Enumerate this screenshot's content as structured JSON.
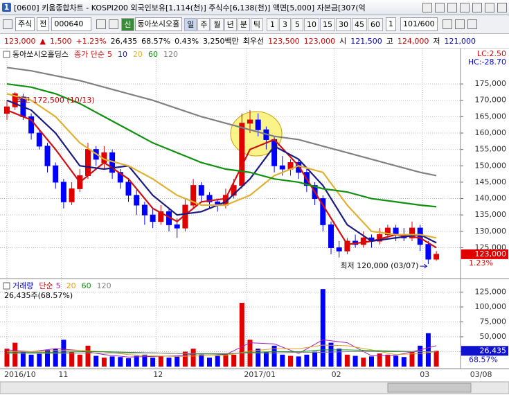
{
  "window": {
    "title": "[0600] 키움종합차트 - KOSPI200 외국인보유[1,114(천)] 주식수[6,138(천)] 액면[5,000] 자본금[307(억",
    "tab": "1"
  },
  "toolbar": {
    "market": "주식",
    "scope": "전",
    "code": "000640",
    "name_icon": "신",
    "name": "동아쏘시오홀",
    "periods": [
      "일",
      "주",
      "월",
      "년",
      "분",
      "틱"
    ],
    "intervals": [
      "1",
      "3",
      "5",
      "10",
      "15",
      "30",
      "45",
      "60"
    ],
    "count_select": "1",
    "page": "101/600"
  },
  "quote": [
    {
      "text": "123,000",
      "color": "#d00000"
    },
    {
      "text": "▲",
      "color": "#d00000"
    },
    {
      "text": "1,500",
      "color": "#d00000"
    },
    {
      "text": "+1.23%",
      "color": "#d00000"
    },
    {
      "text": "26,435",
      "color": "#000000"
    },
    {
      "text": "68.57%",
      "color": "#000000"
    },
    {
      "text": "0.43%",
      "color": "#000000"
    },
    {
      "text": "3,250백만",
      "color": "#000000"
    },
    {
      "text": "최우선",
      "color": "#000000"
    },
    {
      "text": "123,500",
      "color": "#d00000"
    },
    {
      "text": "123,000",
      "color": "#d00000"
    },
    {
      "text": "시",
      "color": "#000000"
    },
    {
      "text": "121,500",
      "color": "#0000d0"
    },
    {
      "text": "고",
      "color": "#000000"
    },
    {
      "text": "124,000",
      "color": "#d00000"
    },
    {
      "text": "저",
      "color": "#000000"
    },
    {
      "text": "121,000",
      "color": "#0000d0"
    }
  ],
  "chart_data": [
    {
      "type": "candlestick",
      "title": "동아쏘시오홀딩스",
      "ma_label": "종가 단순",
      "candles": {
        "up_color": "#e00000",
        "down_color": "#0000ff",
        "open": [
          166000,
          168000,
          171000,
          165000,
          160000,
          156000,
          150000,
          145000,
          139000,
          143000,
          147000,
          155000,
          151000,
          154000,
          148000,
          145000,
          141000,
          138000,
          135000,
          133000,
          136000,
          132000,
          131000,
          138000,
          144000,
          141000,
          139000,
          138000,
          141000,
          144000,
          163000,
          164000,
          161000,
          158000,
          150000,
          149000,
          151000,
          148000,
          144000,
          140000,
          132000,
          125000,
          124000,
          127000,
          126000,
          128000,
          127000,
          129000,
          131000,
          129000,
          128000,
          131000,
          126000,
          121500
        ],
        "high": [
          170000,
          172500,
          172000,
          166000,
          161000,
          157000,
          151000,
          146000,
          145000,
          149000,
          157000,
          156000,
          156000,
          155000,
          149000,
          146000,
          143000,
          139000,
          137000,
          138000,
          137000,
          134000,
          140000,
          146000,
          145000,
          142000,
          140000,
          143000,
          146000,
          166000,
          167000,
          166000,
          162000,
          159000,
          153000,
          152000,
          152000,
          149000,
          145000,
          141000,
          133000,
          127000,
          128000,
          129000,
          130000,
          129000,
          131000,
          132000,
          132000,
          131000,
          133000,
          132000,
          127000,
          124000
        ],
        "low": [
          164000,
          167000,
          164000,
          158000,
          155000,
          148000,
          143000,
          137000,
          138000,
          142000,
          146000,
          150000,
          149000,
          146000,
          143000,
          139000,
          135000,
          132000,
          131000,
          132000,
          130000,
          128000,
          130000,
          137000,
          139000,
          137000,
          136000,
          137000,
          140000,
          143000,
          160000,
          159000,
          155000,
          148000,
          147000,
          147000,
          146000,
          142000,
          138000,
          130000,
          123000,
          122000,
          123000,
          125000,
          125000,
          125000,
          126000,
          128000,
          127000,
          127000,
          127000,
          124000,
          120000,
          121000
        ],
        "close": [
          168000,
          172000,
          165000,
          160000,
          156000,
          150000,
          145000,
          139000,
          143000,
          147000,
          155000,
          152000,
          154000,
          148000,
          145000,
          141000,
          138000,
          135000,
          133000,
          136000,
          132000,
          131000,
          138000,
          144000,
          141000,
          139000,
          138000,
          141000,
          144000,
          163000,
          164000,
          161000,
          158000,
          150000,
          149000,
          151000,
          148000,
          144000,
          140000,
          132000,
          125000,
          124000,
          127000,
          126000,
          128000,
          127000,
          129000,
          131000,
          129000,
          128000,
          131000,
          126000,
          121500,
          123000
        ]
      },
      "ma_x": [
        0,
        3,
        6,
        9,
        12,
        15,
        18,
        21,
        24,
        27,
        30,
        33,
        36,
        39,
        42,
        45,
        48,
        51,
        53
      ],
      "series": [
        {
          "name": "5",
          "color": "#d01010",
          "values": [
            167000,
            164000,
            155000,
            145000,
            151000,
            146000,
            137000,
            133000,
            139000,
            140000,
            155000,
            158000,
            150000,
            138000,
            126000,
            127000,
            129000,
            128000,
            125000
          ]
        },
        {
          "name": "10",
          "color": "#1a1a80",
          "values": [
            170000,
            167000,
            160000,
            150000,
            149000,
            150000,
            141000,
            135000,
            136000,
            139000,
            146000,
            156000,
            152000,
            144000,
            132000,
            127000,
            128000,
            129000,
            126500
          ]
        },
        {
          "name": "20",
          "color": "#e0b030",
          "values": [
            172000,
            170000,
            165000,
            157000,
            152000,
            150000,
            146000,
            141000,
            138000,
            138000,
            141000,
            147000,
            150000,
            148000,
            138000,
            130000,
            129000,
            129000,
            128000
          ]
        },
        {
          "name": "60",
          "color": "#109010",
          "values": [
            175000,
            174000,
            172000,
            169000,
            165000,
            161000,
            157000,
            154000,
            151000,
            149000,
            148000,
            146000,
            145000,
            143000,
            142000,
            140000,
            139000,
            138000,
            137500
          ]
        },
        {
          "name": "120",
          "color": "#808080",
          "values": [
            180000,
            179000,
            177500,
            176000,
            174000,
            172000,
            170000,
            167500,
            165000,
            163000,
            161000,
            159000,
            158000,
            156000,
            154000,
            152000,
            150000,
            148000,
            147000
          ]
        }
      ],
      "ylim": [
        116000,
        182000
      ],
      "yticks": [
        {
          "value": 125000,
          "label": "125,000"
        },
        {
          "value": 130000,
          "label": "130,000"
        },
        {
          "value": 135000,
          "label": "135,000"
        },
        {
          "value": 140000,
          "label": "140,000"
        },
        {
          "value": 145000,
          "label": "145,000"
        },
        {
          "value": 150000,
          "label": "150,000"
        },
        {
          "value": 155000,
          "label": "155,000"
        },
        {
          "value": 160000,
          "label": "160,000"
        },
        {
          "value": 165000,
          "label": "165,000"
        },
        {
          "value": 170000,
          "label": "170,000"
        },
        {
          "value": 175000,
          "label": "175,000"
        }
      ],
      "high_label": "최고 172,500 (10/13)",
      "low_label": "최저 120,000 (03/07)",
      "indicators": [
        {
          "text": "LC:2.50",
          "color": "#e00000"
        },
        {
          "text": "HC:-28.70",
          "color": "#0000ff"
        }
      ],
      "last_price": {
        "value": 123000,
        "label": "123,000"
      },
      "change_label": "1.23%"
    },
    {
      "type": "bar",
      "title": "거래량",
      "ma_label": "단순",
      "subtitle": "26,435주(68.57%)",
      "up_color": "#e00000",
      "down_color": "#0000ff",
      "values": [
        30000,
        40000,
        25000,
        20000,
        22000,
        28000,
        30000,
        45000,
        25000,
        20000,
        35000,
        18000,
        15000,
        17000,
        16000,
        14000,
        18000,
        20000,
        15000,
        17000,
        15000,
        18000,
        25000,
        30000,
        20000,
        15000,
        18000,
        22000,
        20000,
        107000,
        45000,
        30000,
        25000,
        35000,
        20000,
        18000,
        17000,
        20000,
        25000,
        130000,
        40000,
        30000,
        20000,
        18000,
        15000,
        17000,
        22000,
        20000,
        18000,
        16000,
        25000,
        35000,
        56000,
        26435
      ],
      "ma_x": [
        0,
        3,
        6,
        9,
        12,
        15,
        18,
        21,
        24,
        27,
        30,
        33,
        36,
        39,
        42,
        45,
        48,
        51,
        53
      ],
      "series": [
        {
          "name": "5",
          "color": "#a020c0",
          "values": [
            28000,
            25000,
            30000,
            27000,
            20000,
            16000,
            17000,
            18000,
            22000,
            20000,
            40000,
            38000,
            22000,
            45000,
            40000,
            18000,
            19000,
            28000,
            35000
          ]
        },
        {
          "name": "20",
          "color": "#e0a020",
          "values": [
            25000,
            25000,
            27000,
            27000,
            25000,
            20000,
            18000,
            17000,
            18000,
            19000,
            26000,
            30000,
            30000,
            36000,
            35000,
            28000,
            20000,
            22000,
            25000
          ]
        },
        {
          "name": "60",
          "color": "#109010",
          "values": [
            24000,
            24000,
            24000,
            25000,
            25000,
            24000,
            23000,
            22000,
            21000,
            21000,
            24000,
            25000,
            25000,
            28000,
            28000,
            27000,
            26000,
            25000,
            25000
          ]
        },
        {
          "name": "120",
          "color": "#808080",
          "values": [
            22000,
            22000,
            22000,
            23000,
            23000,
            23000,
            23000,
            22000,
            22000,
            22000,
            23000,
            23000,
            24000,
            24000,
            25000,
            25000,
            25000,
            25000,
            25000
          ]
        }
      ],
      "ylim": [
        0,
        132500
      ],
      "yticks": [
        {
          "value": 25000,
          "label": "25,000"
        },
        {
          "value": 50000,
          "label": "50,000"
        },
        {
          "value": 75000,
          "label": "75,000"
        },
        {
          "value": 100000,
          "label": "100,000"
        },
        {
          "value": 125000,
          "label": "125,000"
        }
      ],
      "xticks": [
        {
          "value": 0,
          "label": "2016/10"
        },
        {
          "value": 6.7,
          "label": "11"
        },
        {
          "value": 18.4,
          "label": "12"
        },
        {
          "value": 29.6,
          "label": "2017/01"
        },
        {
          "value": 40.4,
          "label": "02"
        },
        {
          "value": 51.3,
          "label": "03"
        },
        {
          "value": 57.5,
          "label": "03/08"
        }
      ],
      "last_volume": {
        "value": 26435,
        "label": "26,435"
      },
      "ratio_label": "68.57%"
    }
  ]
}
